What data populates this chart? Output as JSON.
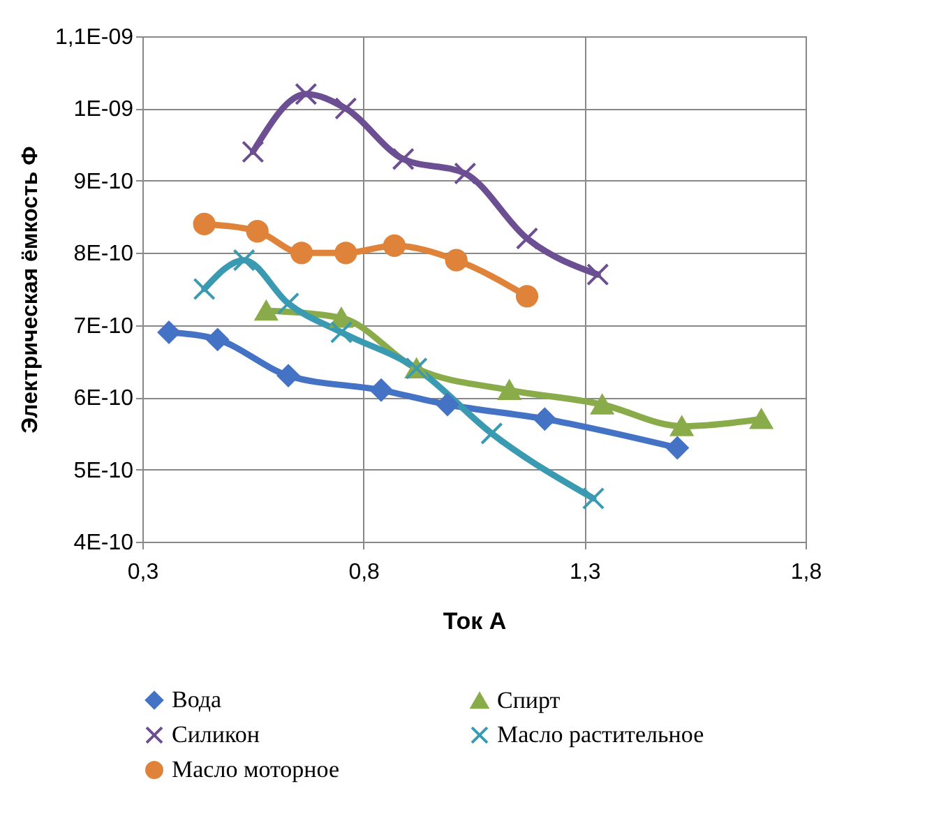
{
  "chart_data": {
    "type": "line",
    "xlabel": "Ток А",
    "ylabel": "Электрическая ёмкость Ф",
    "xlim": [
      0.3,
      1.8
    ],
    "xticks": [
      {
        "value": 0.3,
        "label": "0,3"
      },
      {
        "value": 0.8,
        "label": "0,8"
      },
      {
        "value": 1.3,
        "label": "1,3"
      },
      {
        "value": 1.8,
        "label": "1,8"
      }
    ],
    "ylim": [
      4e-10,
      1.1e-09
    ],
    "yticks": [
      {
        "value": 4e-10,
        "label": "4E-10"
      },
      {
        "value": 5e-10,
        "label": "5E-10"
      },
      {
        "value": 6e-10,
        "label": "6E-10"
      },
      {
        "value": 7e-10,
        "label": "7E-10"
      },
      {
        "value": 8e-10,
        "label": "8E-10"
      },
      {
        "value": 9e-10,
        "label": "9E-10"
      },
      {
        "value": 1e-09,
        "label": "1E-09"
      },
      {
        "value": 1.1e-09,
        "label": "1,1E-09"
      }
    ],
    "grid": true,
    "legend": "bottom",
    "line_style": "solid",
    "series": [
      {
        "name": "Вода",
        "color": "#4472c4",
        "marker": "diamond",
        "x": [
          0.36,
          0.47,
          0.63,
          0.84,
          0.99,
          1.21,
          1.51
        ],
        "values": [
          6.9e-10,
          6.8e-10,
          6.3e-10,
          6.1e-10,
          5.9e-10,
          5.7e-10,
          5.3e-10
        ]
      },
      {
        "name": "Спирт",
        "color": "#8aab4a",
        "marker": "triangle",
        "x": [
          0.58,
          0.75,
          0.92,
          1.13,
          1.34,
          1.52,
          1.7
        ],
        "values": [
          7.2e-10,
          7.1e-10,
          6.4e-10,
          6.1e-10,
          5.9e-10,
          5.6e-10,
          5.7e-10
        ]
      },
      {
        "name": "Силикон",
        "color": "#6c4e92",
        "marker": "cross",
        "x": [
          0.55,
          0.67,
          0.76,
          0.89,
          1.03,
          1.17,
          1.33
        ],
        "values": [
          9.4e-10,
          1.02e-09,
          1e-09,
          9.3e-10,
          9.1e-10,
          8.2e-10,
          7.7e-10
        ]
      },
      {
        "name": "Масло растительное",
        "color": "#3a9ab2",
        "marker": "cross",
        "x": [
          0.44,
          0.53,
          0.63,
          0.75,
          0.92,
          1.09,
          1.32
        ],
        "values": [
          7.5e-10,
          7.9e-10,
          7.3e-10,
          6.9e-10,
          6.4e-10,
          5.5e-10,
          4.6e-10
        ]
      },
      {
        "name": "Масло моторное",
        "color": "#e0833a",
        "marker": "circle",
        "x": [
          0.44,
          0.56,
          0.66,
          0.76,
          0.87,
          1.01,
          1.17
        ],
        "values": [
          8.4e-10,
          8.3e-10,
          8e-10,
          8e-10,
          8.1e-10,
          7.9e-10,
          7.4e-10
        ]
      }
    ]
  }
}
